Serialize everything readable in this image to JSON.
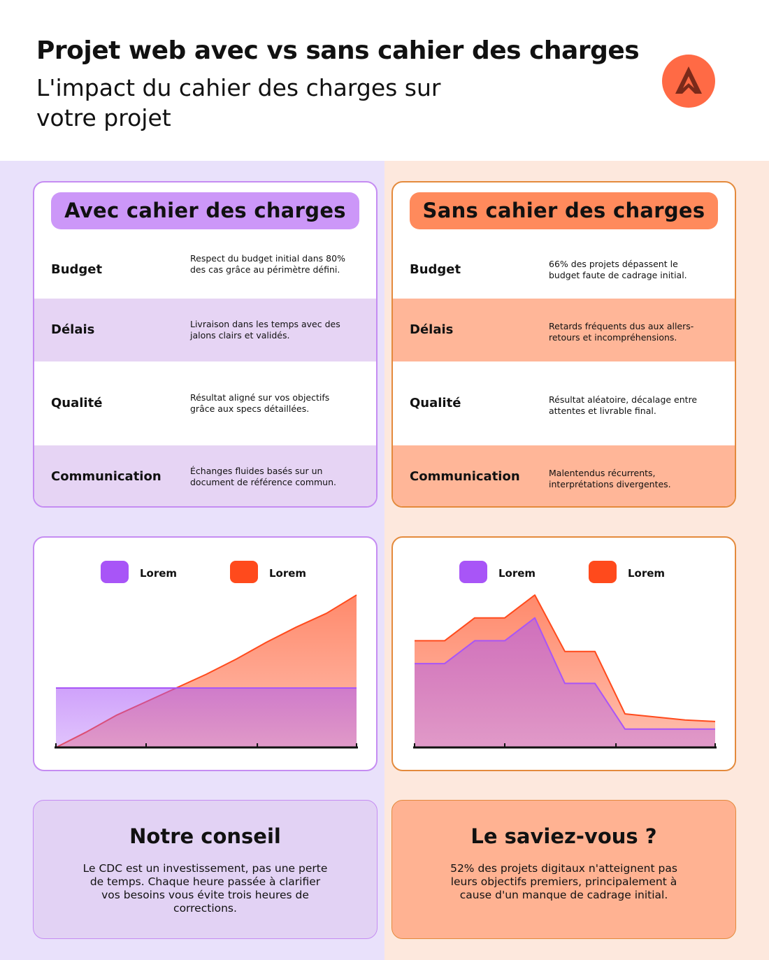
{
  "header": {
    "title": "Projet web avec vs sans cahier des charges",
    "subtitle": "L'impact du cahier des charges sur votre projet"
  },
  "colors": {
    "purple": "#a855f7",
    "orange": "#ff4a1c",
    "left_bg": "#e9e1fb",
    "right_bg": "#fde8dd"
  },
  "with": {
    "title": "Avec cahier des charges",
    "rows": [
      {
        "label": "Budget",
        "desc": "Respect du budget initial dans 80% des cas grâce au périmètre défini."
      },
      {
        "label": "Délais",
        "desc": "Livraison dans les temps avec des jalons clairs et validés."
      },
      {
        "label": "Qualité",
        "desc": "Résultat aligné sur vos objectifs grâce aux specs détaillées."
      },
      {
        "label": "Communication",
        "desc": "Échanges fluides basés sur un document de référence commun."
      }
    ],
    "tip_title": "Notre conseil",
    "tip_text": "Le CDC est un investissement, pas une perte de temps. Chaque heure passée à clarifier vos besoins vous évite trois heures de corrections."
  },
  "without": {
    "title": "Sans cahier des charges",
    "rows": [
      {
        "label": "Budget",
        "desc": "66% des projets dépassent le budget faute de cadrage initial."
      },
      {
        "label": "Délais",
        "desc": "Retards fréquents dus aux allers-retours et incompréhensions."
      },
      {
        "label": "Qualité",
        "desc": "Résultat aléatoire, décalage entre attentes et livrable final."
      },
      {
        "label": "Communication",
        "desc": "Malentendus récurrents, interprétations divergentes."
      }
    ],
    "tip_title": "Le saviez-vous ?",
    "tip_text": "52% des projets digitaux n'atteignent pas leurs objectifs premiers, principalement à cause d'un manque de cadrage initial."
  },
  "chart_data": [
    {
      "type": "area",
      "legend": [
        "Lorem",
        "Lorem"
      ],
      "x": [
        0,
        1,
        2,
        3,
        4,
        5,
        6,
        7,
        8,
        9,
        10
      ],
      "ylim": [
        0,
        100
      ],
      "series": [
        {
          "name": "Lorem",
          "color": "#a855f7",
          "values": [
            39,
            39,
            39,
            39,
            39,
            39,
            39,
            39,
            39,
            39,
            39
          ]
        },
        {
          "name": "Lorem",
          "color": "#ff4a1c",
          "values": [
            0,
            10,
            21,
            30,
            39,
            48,
            58,
            69,
            79,
            88,
            100
          ]
        }
      ]
    },
    {
      "type": "area",
      "legend": [
        "Lorem",
        "Lorem"
      ],
      "x": [
        0,
        1,
        2,
        3,
        4,
        5,
        6,
        7,
        8,
        9,
        10
      ],
      "ylim": [
        0,
        100
      ],
      "series": [
        {
          "name": "Lorem",
          "color": "#a855f7",
          "values": [
            55,
            55,
            70,
            70,
            85,
            42,
            42,
            12,
            12,
            12,
            12
          ]
        },
        {
          "name": "Lorem",
          "color": "#ff4a1c",
          "values": [
            70,
            70,
            85,
            85,
            100,
            63,
            63,
            22,
            20,
            18,
            17
          ]
        }
      ]
    }
  ]
}
